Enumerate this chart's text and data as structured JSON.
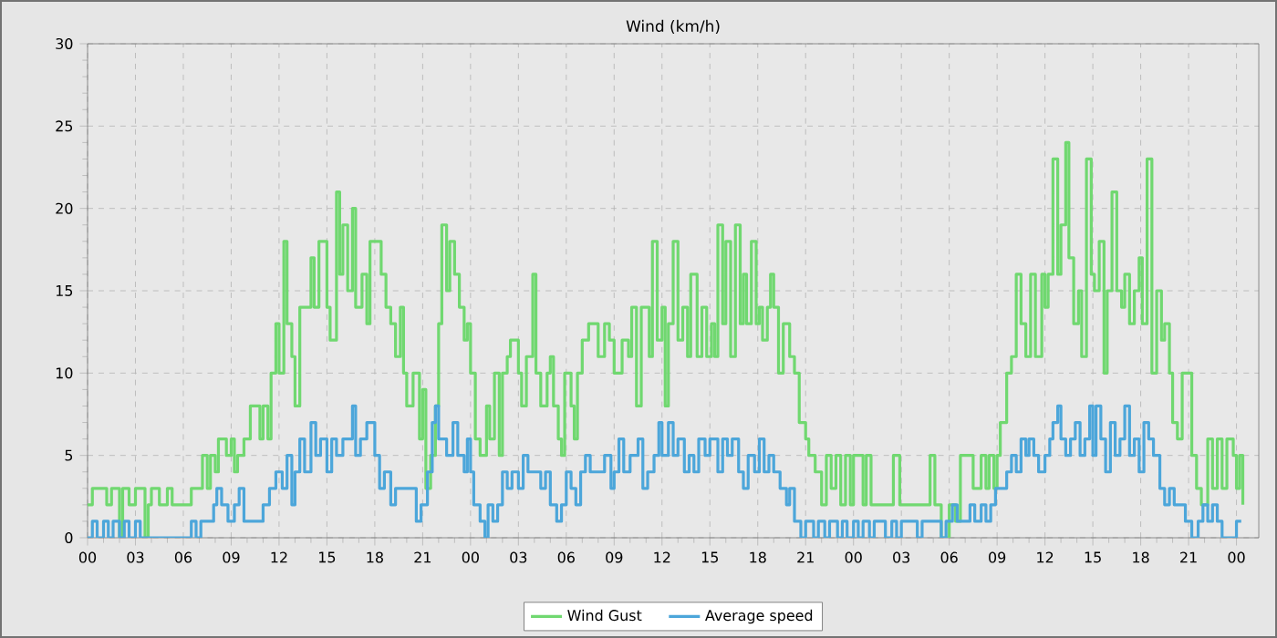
{
  "chart_data": {
    "type": "step",
    "title": "Wind (km/h)",
    "xlim": [
      0,
      73.4
    ],
    "ylim": [
      0,
      30
    ],
    "yticks": [
      0,
      5,
      10,
      15,
      20,
      25,
      30
    ],
    "xticks": [
      {
        "value": 0,
        "label": "00"
      },
      {
        "value": 3,
        "label": "03"
      },
      {
        "value": 6,
        "label": "06"
      },
      {
        "value": 9,
        "label": "09"
      },
      {
        "value": 12,
        "label": "12"
      },
      {
        "value": 15,
        "label": "15"
      },
      {
        "value": 18,
        "label": "18"
      },
      {
        "value": 21,
        "label": "21"
      },
      {
        "value": 24,
        "label": "00"
      },
      {
        "value": 27,
        "label": "03"
      },
      {
        "value": 30,
        "label": "06"
      },
      {
        "value": 33,
        "label": "09"
      },
      {
        "value": 36,
        "label": "12"
      },
      {
        "value": 39,
        "label": "15"
      },
      {
        "value": 42,
        "label": "18"
      },
      {
        "value": 45,
        "label": "21"
      },
      {
        "value": 48,
        "label": "00"
      },
      {
        "value": 51,
        "label": "03"
      },
      {
        "value": 54,
        "label": "06"
      },
      {
        "value": 57,
        "label": "09"
      },
      {
        "value": 60,
        "label": "12"
      },
      {
        "value": 63,
        "label": "15"
      },
      {
        "value": 66,
        "label": "18"
      },
      {
        "value": 69,
        "label": "21"
      },
      {
        "value": 72,
        "label": "00"
      }
    ],
    "grid": true,
    "legend": "bottom",
    "marker": "none",
    "line_style": "solid",
    "series": [
      {
        "name": "Wind Gust",
        "color": "#70d870",
        "x": [
          0,
          0.3,
          1.2,
          1.5,
          2.0,
          2.2,
          2.6,
          3.0,
          3.6,
          3.8,
          4.0,
          4.5,
          5.0,
          5.3,
          6.0,
          6.5,
          7.2,
          7.5,
          7.7,
          8.0,
          8.2,
          8.7,
          9.0,
          9.2,
          9.4,
          9.8,
          10.2,
          10.8,
          11.0,
          11.3,
          11.5,
          11.8,
          12.0,
          12.3,
          12.5,
          12.8,
          13.0,
          13.3,
          14.0,
          14.2,
          14.5,
          15.0,
          15.2,
          15.6,
          15.8,
          16.0,
          16.3,
          16.6,
          16.8,
          17.2,
          17.5,
          17.7,
          18.4,
          18.7,
          19.0,
          19.3,
          19.6,
          19.8,
          20.0,
          20.4,
          20.8,
          21.0,
          21.2,
          21.5,
          21.8,
          22.0,
          22.2,
          22.5,
          22.7,
          23.0,
          23.3,
          23.6,
          23.8,
          24.0,
          24.3,
          24.6,
          25.0,
          25.2,
          25.5,
          25.8,
          26.0,
          26.3,
          26.5,
          27.0,
          27.2,
          27.5,
          27.9,
          28.1,
          28.4,
          28.8,
          29.0,
          29.2,
          29.5,
          29.7,
          29.9,
          30.3,
          30.5,
          30.7,
          31.0,
          31.4,
          32.0,
          32.4,
          32.7,
          33.0,
          33.5,
          33.9,
          34.1,
          34.4,
          34.7,
          35.2,
          35.4,
          35.7,
          36.0,
          36.2,
          36.4,
          36.7,
          37.0,
          37.3,
          37.6,
          37.8,
          38.2,
          38.5,
          38.8,
          39.1,
          39.3,
          39.5,
          39.8,
          40.0,
          40.3,
          40.6,
          40.9,
          41.1,
          41.3,
          41.6,
          41.9,
          42.1,
          42.3,
          42.6,
          42.8,
          43.0,
          43.3,
          43.6,
          44.0,
          44.3,
          44.6,
          45.0,
          45.2,
          45.6,
          46.0,
          46.3,
          46.6,
          46.9,
          47.2,
          47.5,
          47.8,
          48.0,
          48.6,
          48.8,
          49.1,
          50.5,
          50.9,
          52.8,
          53.1,
          53.5,
          54.0,
          54.4,
          54.7,
          55.0,
          55.5,
          56.0,
          56.3,
          56.5,
          56.8,
          57.0,
          57.2,
          57.6,
          57.9,
          58.2,
          58.5,
          58.8,
          59.1,
          59.4,
          59.8,
          60.0,
          60.2,
          60.5,
          60.8,
          61.0,
          61.3,
          61.5,
          61.8,
          62.1,
          62.3,
          62.6,
          62.9,
          63.1,
          63.4,
          63.7,
          63.9,
          64.2,
          64.5,
          64.8,
          65.0,
          65.3,
          65.6,
          65.9,
          66.1,
          66.4,
          66.7,
          67.0,
          67.3,
          67.5,
          67.8,
          68.0,
          68.3,
          68.6,
          69.2,
          69.5,
          69.8,
          70.2,
          70.5,
          70.8,
          71.1,
          71.4,
          71.8,
          72.0,
          72.2,
          72.4
        ],
        "values": [
          2,
          3,
          2,
          3,
          0,
          3,
          2,
          3,
          0,
          2,
          3,
          2,
          3,
          2,
          2,
          3,
          5,
          3,
          5,
          4,
          6,
          5,
          6,
          4,
          5,
          6,
          8,
          6,
          8,
          6,
          10,
          13,
          10,
          18,
          13,
          11,
          8,
          14,
          17,
          14,
          18,
          14,
          12,
          21,
          16,
          19,
          15,
          20,
          14,
          16,
          13,
          18,
          16,
          14,
          13,
          11,
          14,
          10,
          8,
          10,
          6,
          9,
          3,
          5,
          8,
          13,
          19,
          15,
          18,
          16,
          14,
          12,
          13,
          10,
          6,
          5,
          8,
          6,
          10,
          5,
          10,
          11,
          12,
          10,
          8,
          11,
          16,
          10,
          8,
          10,
          11,
          8,
          6,
          5,
          10,
          8,
          6,
          10,
          12,
          13,
          11,
          13,
          12,
          10,
          12,
          11,
          14,
          8,
          14,
          11,
          18,
          12,
          14,
          8,
          13,
          18,
          12,
          14,
          11,
          16,
          11,
          14,
          11,
          13,
          11,
          19,
          13,
          18,
          11,
          19,
          13,
          16,
          13,
          18,
          13,
          14,
          12,
          14,
          16,
          14,
          10,
          13,
          11,
          10,
          7,
          6,
          5,
          4,
          2,
          5,
          3,
          5,
          2,
          5,
          2,
          5,
          2,
          5,
          2,
          5,
          2,
          5,
          2,
          0,
          2,
          1,
          5,
          5,
          3,
          5,
          3,
          5,
          3,
          5,
          7,
          10,
          11,
          16,
          13,
          11,
          16,
          11,
          16,
          14,
          16,
          23,
          16,
          19,
          24,
          17,
          13,
          15,
          11,
          23,
          16,
          15,
          18,
          10,
          15,
          21,
          15,
          14,
          16,
          13,
          15,
          17,
          13,
          23,
          10,
          15,
          12,
          13,
          10,
          7,
          6,
          10,
          5,
          3,
          2,
          6,
          3,
          6,
          3,
          6,
          5,
          3,
          5,
          2
        ]
      },
      {
        "name": "Average speed",
        "color": "#4ca6da",
        "x": [
          0,
          0.3,
          0.6,
          1.0,
          1.3,
          1.6,
          2.0,
          2.3,
          2.6,
          3.0,
          3.3,
          6.5,
          6.8,
          7.1,
          7.9,
          8.1,
          8.4,
          8.8,
          9.2,
          9.5,
          9.8,
          11.0,
          11.4,
          11.8,
          12.2,
          12.5,
          12.8,
          13.0,
          13.3,
          13.6,
          14.0,
          14.3,
          14.6,
          15.0,
          15.3,
          15.6,
          16.0,
          16.6,
          16.8,
          17.1,
          17.5,
          18.0,
          18.3,
          18.6,
          19.0,
          19.3,
          20.0,
          20.6,
          20.9,
          21.3,
          21.6,
          21.8,
          22.0,
          22.5,
          22.9,
          23.2,
          23.6,
          23.8,
          24.0,
          24.2,
          24.6,
          24.9,
          25.1,
          25.4,
          25.7,
          26.0,
          26.3,
          26.6,
          27.0,
          27.3,
          27.6,
          28.4,
          28.7,
          29.0,
          29.4,
          29.7,
          30.0,
          30.3,
          30.6,
          30.9,
          31.2,
          31.5,
          32.4,
          32.8,
          33.0,
          33.3,
          33.6,
          34.0,
          34.5,
          34.8,
          35.1,
          35.5,
          35.8,
          36.0,
          36.4,
          36.7,
          37.0,
          37.4,
          37.7,
          38.0,
          38.3,
          38.7,
          39.0,
          39.5,
          39.8,
          40.1,
          40.4,
          40.8,
          41.1,
          41.4,
          41.8,
          42.1,
          42.4,
          42.7,
          43.0,
          43.4,
          43.8,
          44.0,
          44.3,
          44.7,
          45.0,
          45.5,
          45.8,
          46.2,
          46.5,
          47.0,
          47.3,
          47.6,
          48.0,
          48.3,
          48.6,
          49.0,
          49.3,
          50.0,
          50.4,
          50.7,
          51.0,
          52.0,
          52.3,
          53.5,
          53.8,
          54.2,
          54.5,
          55.3,
          55.6,
          56.0,
          56.3,
          56.6,
          56.9,
          57.6,
          57.9,
          58.2,
          58.5,
          58.8,
          59.0,
          59.3,
          59.6,
          60.0,
          60.3,
          60.5,
          60.8,
          61.0,
          61.3,
          61.6,
          61.9,
          62.2,
          62.5,
          62.8,
          63.0,
          63.2,
          63.5,
          63.8,
          64.1,
          64.4,
          64.7,
          65.0,
          65.3,
          65.6,
          65.9,
          66.2,
          66.5,
          66.8,
          67.2,
          67.5,
          67.8,
          68.1,
          68.8,
          69.2,
          69.6,
          69.9,
          70.2,
          70.5,
          70.8,
          71.1,
          72.0,
          72.3
        ],
        "values": [
          0,
          1,
          0,
          1,
          0,
          1,
          0,
          1,
          0,
          1,
          0,
          1,
          0,
          1,
          2,
          3,
          2,
          1,
          2,
          3,
          1,
          2,
          3,
          4,
          3,
          5,
          2,
          4,
          6,
          4,
          7,
          5,
          6,
          4,
          6,
          5,
          6,
          8,
          5,
          6,
          7,
          5,
          3,
          4,
          2,
          3,
          3,
          1,
          2,
          4,
          7,
          8,
          6,
          5,
          7,
          5,
          4,
          6,
          4,
          2,
          1,
          0,
          2,
          1,
          2,
          4,
          3,
          4,
          3,
          5,
          4,
          3,
          4,
          2,
          1,
          2,
          4,
          3,
          2,
          4,
          5,
          4,
          5,
          3,
          4,
          6,
          4,
          5,
          6,
          3,
          4,
          5,
          7,
          5,
          7,
          5,
          6,
          4,
          5,
          4,
          6,
          5,
          6,
          4,
          6,
          5,
          6,
          4,
          3,
          5,
          4,
          6,
          4,
          5,
          4,
          3,
          2,
          3,
          1,
          0,
          1,
          0,
          1,
          0,
          1,
          0,
          1,
          0,
          1,
          0,
          1,
          0,
          1,
          0,
          1,
          0,
          1,
          0,
          1,
          0,
          1,
          2,
          1,
          2,
          1,
          2,
          1,
          2,
          3,
          4,
          5,
          4,
          6,
          5,
          6,
          5,
          4,
          5,
          6,
          7,
          8,
          6,
          5,
          6,
          7,
          5,
          6,
          8,
          5,
          8,
          6,
          4,
          7,
          5,
          6,
          8,
          5,
          6,
          4,
          7,
          6,
          5,
          3,
          2,
          3,
          2,
          1,
          0,
          1,
          2,
          1,
          2,
          1,
          0,
          1,
          1
        ]
      }
    ]
  }
}
